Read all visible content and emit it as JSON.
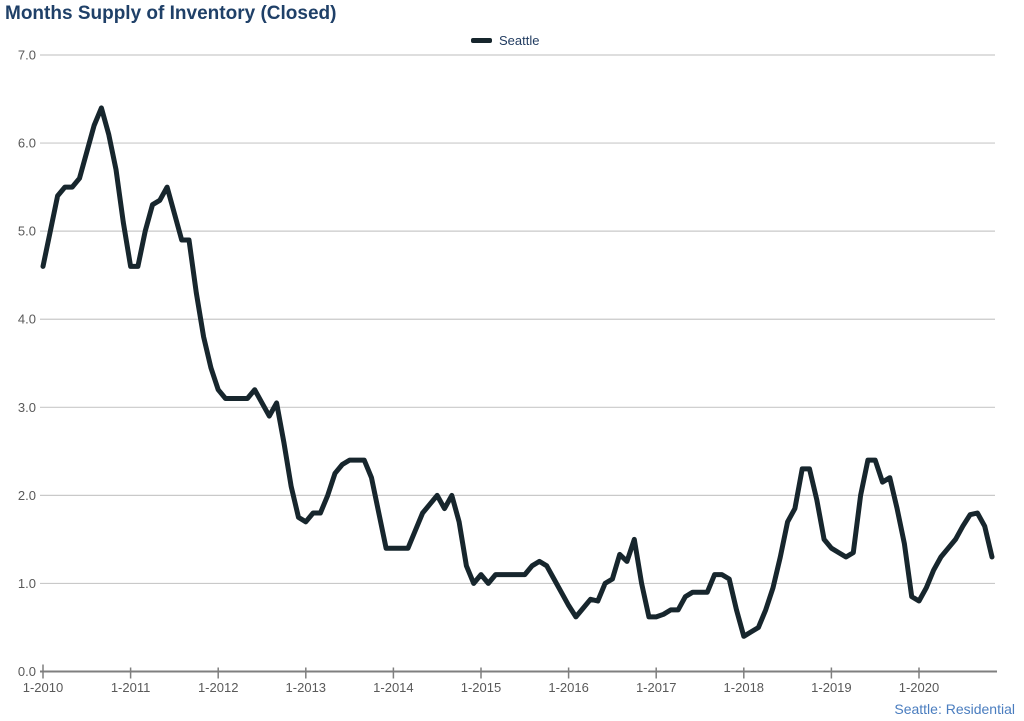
{
  "header": {
    "title": "Months Supply of Inventory (Closed)"
  },
  "legend": {
    "series_label": "Seattle"
  },
  "footer": {
    "note": "Seattle: Residential"
  },
  "colors": {
    "title": "#1f4068",
    "legend_text": "#1f3a5f",
    "footer_text": "#4a7dbf",
    "line": "#17262d",
    "grid": "#c9c9c9",
    "axis": "#7f7f7f",
    "tick_label": "#595959"
  },
  "chart_data": {
    "type": "line",
    "title": "Months Supply of Inventory (Closed)",
    "xlabel": "",
    "ylabel": "",
    "ylim": [
      0.0,
      7.0
    ],
    "y_tick_step": 1.0,
    "y_tick_labels": [
      "0.0",
      "1.0",
      "2.0",
      "3.0",
      "4.0",
      "5.0",
      "6.0",
      "7.0"
    ],
    "x_tick_labels": [
      "1-2010",
      "1-2011",
      "1-2012",
      "1-2013",
      "1-2014",
      "1-2015",
      "1-2016",
      "1-2017",
      "1-2018",
      "1-2019",
      "1-2020"
    ],
    "grid": "horizontal",
    "legend_position": "top-center",
    "frequency": "monthly",
    "x_start": "1-2010",
    "x_end": "11-2020",
    "series": [
      {
        "name": "Seattle",
        "values": [
          4.6,
          5.0,
          5.4,
          5.5,
          5.5,
          5.6,
          5.9,
          6.2,
          6.4,
          6.1,
          5.7,
          5.1,
          4.6,
          4.6,
          5.0,
          5.3,
          5.35,
          5.5,
          5.2,
          4.9,
          4.9,
          4.3,
          3.8,
          3.45,
          3.2,
          3.1,
          3.1,
          3.1,
          3.1,
          3.2,
          3.05,
          2.9,
          3.05,
          2.6,
          2.1,
          1.75,
          1.7,
          1.8,
          1.8,
          2.0,
          2.25,
          2.35,
          2.4,
          2.4,
          2.4,
          2.2,
          1.8,
          1.4,
          1.4,
          1.4,
          1.4,
          1.6,
          1.8,
          1.9,
          2.0,
          1.85,
          2.0,
          1.7,
          1.2,
          1.0,
          1.1,
          1.0,
          1.1,
          1.1,
          1.1,
          1.1,
          1.1,
          1.2,
          1.25,
          1.2,
          1.05,
          0.9,
          0.75,
          0.62,
          0.72,
          0.82,
          0.8,
          1.0,
          1.05,
          1.33,
          1.25,
          1.5,
          1.0,
          0.62,
          0.62,
          0.65,
          0.7,
          0.7,
          0.85,
          0.9,
          0.9,
          0.9,
          1.1,
          1.1,
          1.05,
          0.7,
          0.4,
          0.45,
          0.5,
          0.7,
          0.95,
          1.3,
          1.7,
          1.85,
          2.3,
          2.3,
          1.95,
          1.5,
          1.4,
          1.35,
          1.3,
          1.35,
          2.0,
          2.4,
          2.4,
          2.15,
          2.2,
          1.85,
          1.45,
          0.85,
          0.8,
          0.95,
          1.15,
          1.3,
          1.4,
          1.5,
          1.65,
          1.78,
          1.8,
          1.65,
          1.3
        ]
      }
    ]
  }
}
